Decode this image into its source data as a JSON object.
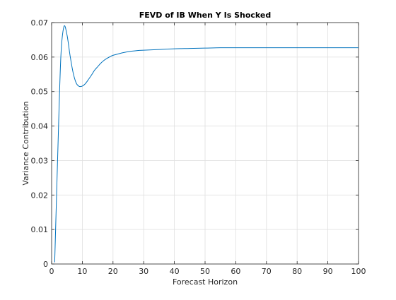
{
  "chart_data": {
    "type": "line",
    "title": "FEVD of IB When Y Is Shocked",
    "xlabel": "Forecast Horizon",
    "ylabel": "Variance Contribution",
    "xlim": [
      0,
      100
    ],
    "ylim": [
      0,
      0.07
    ],
    "xticks": [
      0,
      10,
      20,
      30,
      40,
      50,
      60,
      70,
      80,
      90,
      100
    ],
    "yticks": [
      0,
      0.01,
      0.02,
      0.03,
      0.04,
      0.05,
      0.06,
      0.07
    ],
    "xtick_labels": [
      "0",
      "10",
      "20",
      "30",
      "40",
      "50",
      "60",
      "70",
      "80",
      "90",
      "100"
    ],
    "ytick_labels": [
      "0",
      "0.01",
      "0.02",
      "0.03",
      "0.04",
      "0.05",
      "0.06",
      "0.07"
    ],
    "grid": true,
    "series": [
      {
        "color": "#0072BD",
        "x": [
          1,
          2,
          3,
          4,
          5,
          6,
          7,
          8,
          9,
          10,
          11,
          12,
          13,
          14,
          15,
          16,
          17,
          18,
          19,
          20,
          22,
          24,
          26,
          28,
          30,
          35,
          40,
          45,
          50,
          55,
          60,
          70,
          80,
          90,
          100
        ],
        "y": [
          0.0005,
          0.032,
          0.06,
          0.0688,
          0.0665,
          0.0605,
          0.0555,
          0.0525,
          0.0515,
          0.0516,
          0.0523,
          0.0535,
          0.0548,
          0.0562,
          0.0572,
          0.0582,
          0.059,
          0.0596,
          0.0601,
          0.0605,
          0.061,
          0.0614,
          0.0617,
          0.0619,
          0.062,
          0.0622,
          0.0624,
          0.0625,
          0.0626,
          0.0627,
          0.0627,
          0.0627,
          0.0627,
          0.0627,
          0.0627
        ]
      }
    ]
  }
}
